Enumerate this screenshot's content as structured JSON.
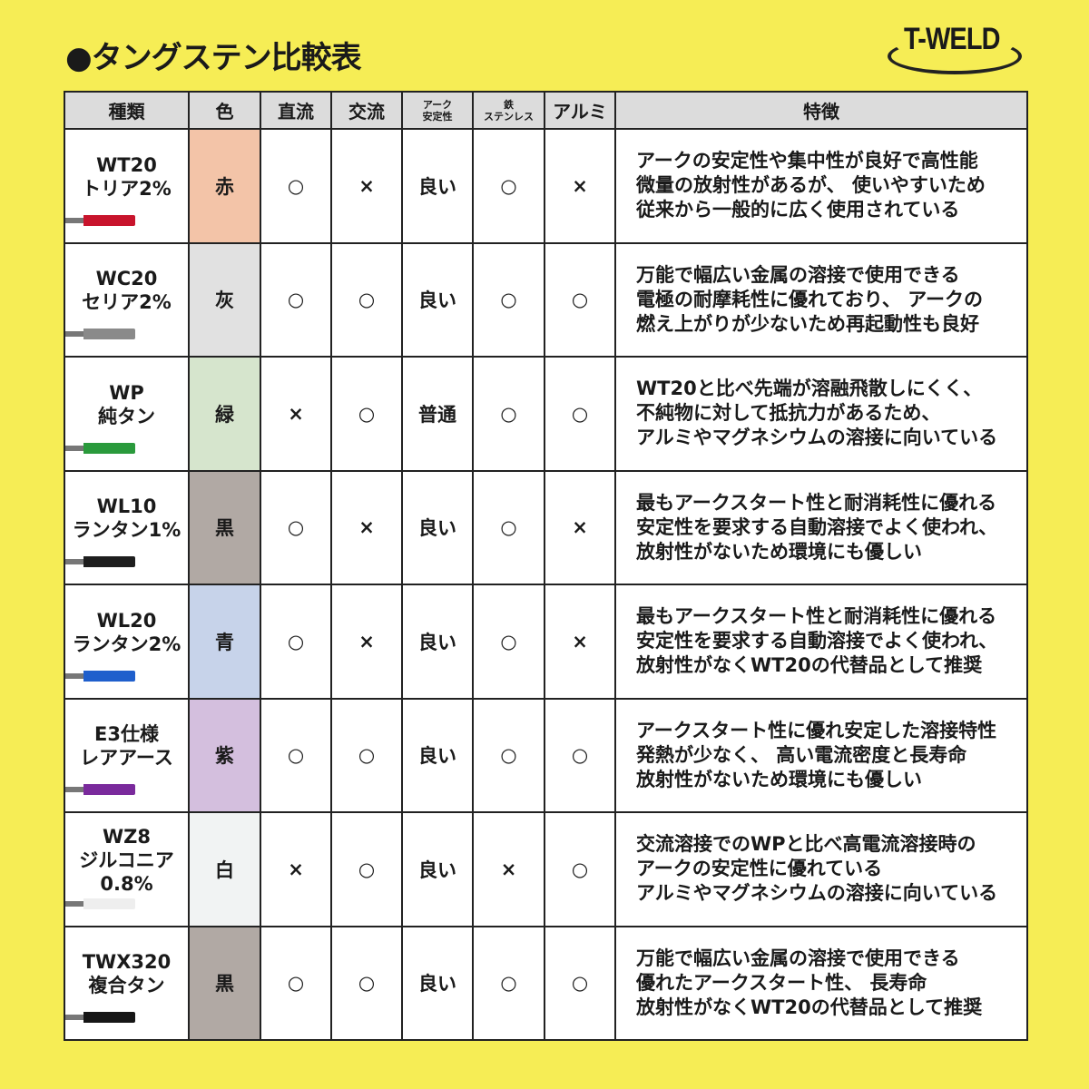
{
  "title": "●タングステン比較表",
  "logo": "T-WELD",
  "headers": [
    "種類",
    "色",
    "直流",
    "交流",
    "アーク\n安定性",
    "鉄\nステンレス",
    "アルミ",
    "特徴"
  ],
  "rows": [
    {
      "type": [
        "WT20",
        "トリア2%"
      ],
      "color": "赤",
      "cell_color": "#f3c4a8",
      "rod_color": "#c8142c",
      "dc": "○",
      "ac": "×",
      "arc": "良い",
      "steel": "○",
      "alu": "×",
      "features": [
        "アークの安定性や集中性が良好で高性能",
        "微量の放射性があるが、 使いやすいため",
        "従来から一般的に広く使用されている"
      ]
    },
    {
      "type": [
        "WC20",
        "セリア2%"
      ],
      "color": "灰",
      "cell_color": "#e1e1e1",
      "rod_color": "#8a8a8a",
      "dc": "○",
      "ac": "○",
      "arc": "良い",
      "steel": "○",
      "alu": "○",
      "features": [
        "万能で幅広い金属の溶接で使用できる",
        "電極の耐摩耗性に優れており、 アークの",
        "燃え上がりが少ないため再起動性も良好"
      ]
    },
    {
      "type": [
        "WP",
        "純タン"
      ],
      "color": "緑",
      "cell_color": "#d6e5cd",
      "rod_color": "#2a9a3c",
      "dc": "×",
      "ac": "○",
      "arc": "普通",
      "steel": "○",
      "alu": "○",
      "features": [
        "WT20と比べ先端が溶融飛散しにくく、",
        "不純物に対して抵抗力があるため、",
        "アルミやマグネシウムの溶接に向いている"
      ]
    },
    {
      "type": [
        "WL10",
        "ランタン1%"
      ],
      "color": "黒",
      "cell_color": "#b1a9a4",
      "rod_color": "#1e1e1e",
      "dc": "○",
      "ac": "×",
      "arc": "良い",
      "steel": "○",
      "alu": "×",
      "features": [
        "最もアークスタート性と耐消耗性に優れる",
        "安定性を要求する自動溶接でよく使われ、",
        "放射性がないため環境にも優しい"
      ]
    },
    {
      "type": [
        "WL20",
        "ランタン2%"
      ],
      "color": "青",
      "cell_color": "#c7d3ea",
      "rod_color": "#1f5fcc",
      "dc": "○",
      "ac": "×",
      "arc": "良い",
      "steel": "○",
      "alu": "×",
      "features": [
        "最もアークスタート性と耐消耗性に優れる",
        "安定性を要求する自動溶接でよく使われ、",
        "放射性がなくWT20の代替品として推奨"
      ]
    },
    {
      "type": [
        "E3仕様",
        "レアアース"
      ],
      "color": "紫",
      "cell_color": "#d4bfde",
      "rod_color": "#7a2a9c",
      "dc": "○",
      "ac": "○",
      "arc": "良い",
      "steel": "○",
      "alu": "○",
      "features": [
        "アークスタート性に優れ安定した溶接特性",
        "発熱が少なく、 高い電流密度と長寿命",
        "放射性がないため環境にも優しい"
      ]
    },
    {
      "type": [
        "WZ8",
        "ジルコニア",
        "0.8%"
      ],
      "color": "白",
      "cell_color": "#f1f3f3",
      "rod_color": "#eeeeee",
      "dc": "×",
      "ac": "○",
      "arc": "良い",
      "steel": "×",
      "alu": "○",
      "features": [
        "交流溶接でのWPと比べ高電流溶接時の",
        "アークの安定性に優れている",
        "アルミやマグネシウムの溶接に向いている"
      ]
    },
    {
      "type": [
        "TWX320",
        "複合タン"
      ],
      "color": "黒",
      "cell_color": "#b1a9a4",
      "rod_color": "#161616",
      "dc": "○",
      "ac": "○",
      "arc": "良い",
      "steel": "○",
      "alu": "○",
      "features": [
        "万能で幅広い金属の溶接で使用できる",
        "優れたアークスタート性、 長寿命",
        "放射性がなくWT20の代替品として推奨"
      ]
    }
  ]
}
